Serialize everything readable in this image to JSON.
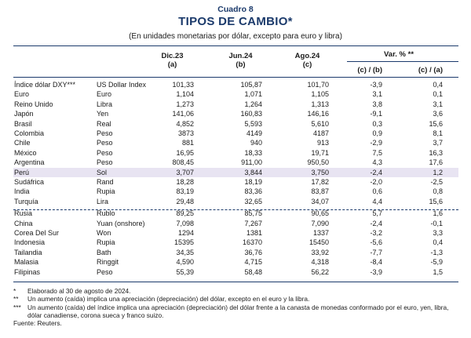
{
  "header": {
    "cuadro": "Cuadro 8",
    "title": "TIPOS DE CAMBIO*",
    "subtitle": "(En unidades monetarias por dólar, excepto para euro y libra)"
  },
  "columns": {
    "dic": "Dic.23",
    "dic_sub": "(a)",
    "jun": "Jun.24",
    "jun_sub": "(b)",
    "ago": "Ago.24",
    "ago_sub": "(c)",
    "var": "Var. % **",
    "cb": "(c) / (b)",
    "ca": "(c) / (a)"
  },
  "rows": [
    {
      "country": "Índice dólar DXY***",
      "currency": "US Dollar Index",
      "dic": "101,33",
      "jun": "105,87",
      "ago": "101,70",
      "cb": "-3,9",
      "ca": "0,4"
    },
    {
      "country": "Euro",
      "currency": "Euro",
      "dic": "1,104",
      "jun": "1,071",
      "ago": "1,105",
      "cb": "3,1",
      "ca": "0,1"
    },
    {
      "country": "Reino Unido",
      "currency": "Libra",
      "dic": "1,273",
      "jun": "1,264",
      "ago": "1,313",
      "cb": "3,8",
      "ca": "3,1"
    },
    {
      "country": "Japón",
      "currency": "Yen",
      "dic": "141,06",
      "jun": "160,83",
      "ago": "146,16",
      "cb": "-9,1",
      "ca": "3,6"
    },
    {
      "country": "Brasil",
      "currency": "Real",
      "dic": "4,852",
      "jun": "5,593",
      "ago": "5,610",
      "cb": "0,3",
      "ca": "15,6"
    },
    {
      "country": "Colombia",
      "currency": "Peso",
      "dic": "3873",
      "jun": "4149",
      "ago": "4187",
      "cb": "0,9",
      "ca": "8,1"
    },
    {
      "country": "Chile",
      "currency": "Peso",
      "dic": "881",
      "jun": "940",
      "ago": "913",
      "cb": "-2,9",
      "ca": "3,7"
    },
    {
      "country": "México",
      "currency": "Peso",
      "dic": "16,95",
      "jun": "18,33",
      "ago": "19,71",
      "cb": "7,5",
      "ca": "16,3"
    },
    {
      "country": "Argentina",
      "currency": "Peso",
      "dic": "808,45",
      "jun": "911,00",
      "ago": "950,50",
      "cb": "4,3",
      "ca": "17,6"
    },
    {
      "country": "Perú",
      "currency": "Sol",
      "dic": "3,707",
      "jun": "3,844",
      "ago": "3,750",
      "cb": "-2,4",
      "ca": "1,2"
    },
    {
      "country": "Sudáfrica",
      "currency": "Rand",
      "dic": "18,28",
      "jun": "18,19",
      "ago": "17,82",
      "cb": "-2,0",
      "ca": "-2,5"
    },
    {
      "country": "India",
      "currency": "Rupia",
      "dic": "83,19",
      "jun": "83,36",
      "ago": "83,87",
      "cb": "0,6",
      "ca": "0,8"
    },
    {
      "country": "Turquía",
      "currency": "Lira",
      "dic": "29,48",
      "jun": "32,65",
      "ago": "34,07",
      "cb": "4,4",
      "ca": "15,6"
    },
    {
      "country": "Rusia",
      "currency": "Rublo",
      "dic": "89,25",
      "jun": "85,75",
      "ago": "90,65",
      "cb": "5,7",
      "ca": "1,6"
    },
    {
      "country": "China",
      "currency": "Yuan (onshore)",
      "dic": "7,098",
      "jun": "7,267",
      "ago": "7,090",
      "cb": "-2,4",
      "ca": "-0,1"
    },
    {
      "country": "Corea Del Sur",
      "currency": "Won",
      "dic": "1294",
      "jun": "1381",
      "ago": "1337",
      "cb": "-3,2",
      "ca": "3,3"
    },
    {
      "country": "Indonesia",
      "currency": "Rupia",
      "dic": "15395",
      "jun": "16370",
      "ago": "15450",
      "cb": "-5,6",
      "ca": "0,4"
    },
    {
      "country": "Tailandia",
      "currency": "Bath",
      "dic": "34,35",
      "jun": "36,76",
      "ago": "33,92",
      "cb": "-7,7",
      "ca": "-1,3"
    },
    {
      "country": "Malasia",
      "currency": "Ringgit",
      "dic": "4,590",
      "jun": "4,715",
      "ago": "4,318",
      "cb": "-8,4",
      "ca": "-5,9"
    },
    {
      "country": "Filipinas",
      "currency": "Peso",
      "dic": "55,39",
      "jun": "58,48",
      "ago": "56,22",
      "cb": "-3,9",
      "ca": "1,5"
    }
  ],
  "notes": [
    {
      "mark": "*",
      "text": "Elaborado al 30 de agosto de 2024."
    },
    {
      "mark": "**",
      "text": "Un aumento (caída) implica una apreciación (depreciación) del dólar, excepto en el euro y la libra."
    },
    {
      "mark": "***",
      "text": "Un aumento (caída) del índice implica una apreciación (depreciación) del dólar frente a la canasta de monedas conformado por el euro, yen, libra, dólar canadiense, corona sueca y franco suizo."
    }
  ],
  "source": "Fuente: Reuters."
}
